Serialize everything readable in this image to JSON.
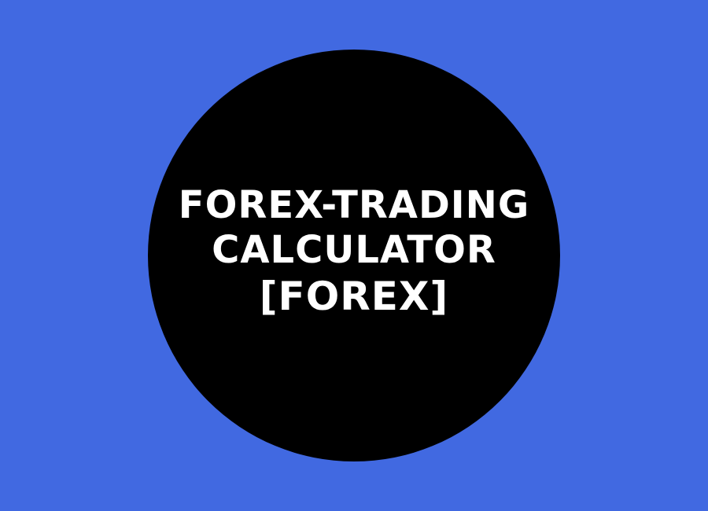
{
  "colors": {
    "background": "#4169E1",
    "circle": "#000000",
    "text": "#FFFFFF"
  },
  "title": {
    "line1": "FOREX-TRADING",
    "line2": "CALCULATOR",
    "line3": "[FOREX]"
  }
}
